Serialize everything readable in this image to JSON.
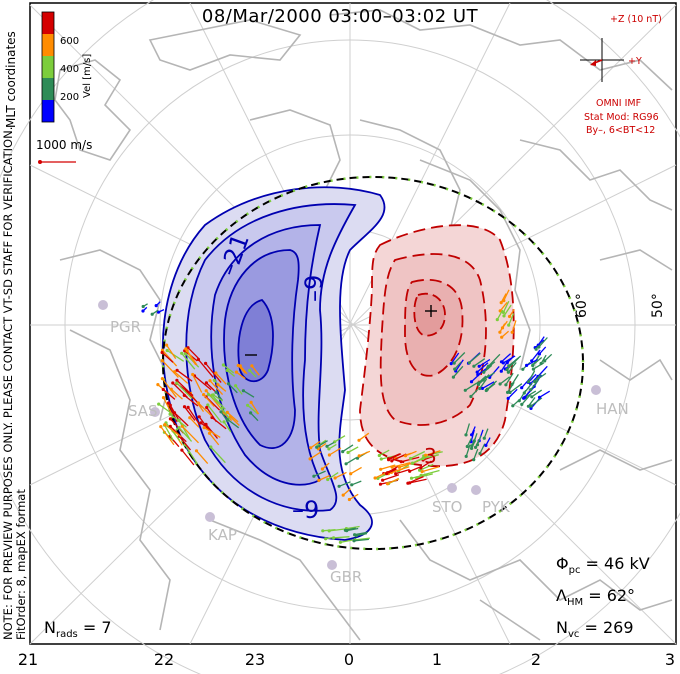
{
  "title": "08/Mar/2000 03:00–03:02 UT",
  "imf": {
    "scale": "+Z (10 nT)",
    "y_label": "+Y",
    "source": "OMNI IMF",
    "stat_mod": "Stat Mod: RG96",
    "condition": "By–, 6<BT<12"
  },
  "colorbar": {
    "label": "Vel [m/s]",
    "ticks": [
      "600",
      "400",
      "200"
    ],
    "colors": [
      "#d40000",
      "#ff8c00",
      "#7ccd3c",
      "#2e8b57",
      "#0000ff"
    ]
  },
  "coords_label": "MLT coordinates",
  "vector_scale": "1000 m/s",
  "side_note": {
    "line1": "NOTE: FOR PREVIEW PURPOSES ONLY. PLEASE CONTACT VT-SD STAFF FOR VERIFICATION.",
    "line2": "FitOrder: 8, mapEX format"
  },
  "latitude_labels": [
    "60°",
    "50°"
  ],
  "radar_sites": [
    "PGR",
    "SAS",
    "KAP",
    "GBR",
    "STO",
    "PYK",
    "HAN"
  ],
  "contour_labels": [
    "–21",
    "–9",
    "–9",
    "3",
    "–",
    "+"
  ],
  "mlt_ticks": [
    "21",
    "22",
    "23",
    "0",
    "1",
    "2",
    "3"
  ],
  "stats": {
    "phi_pc": {
      "symbol": "Φ",
      "sub": "pc",
      "value": "= 46 kV"
    },
    "lambda_hm": {
      "symbol": "Λ",
      "sub": "HM",
      "value": "= 62°"
    },
    "n_vc": {
      "symbol": "N",
      "sub": "vc",
      "value": "= 269"
    },
    "n_rads": {
      "symbol": "N",
      "sub": "rads",
      "value": "= 7"
    }
  }
}
